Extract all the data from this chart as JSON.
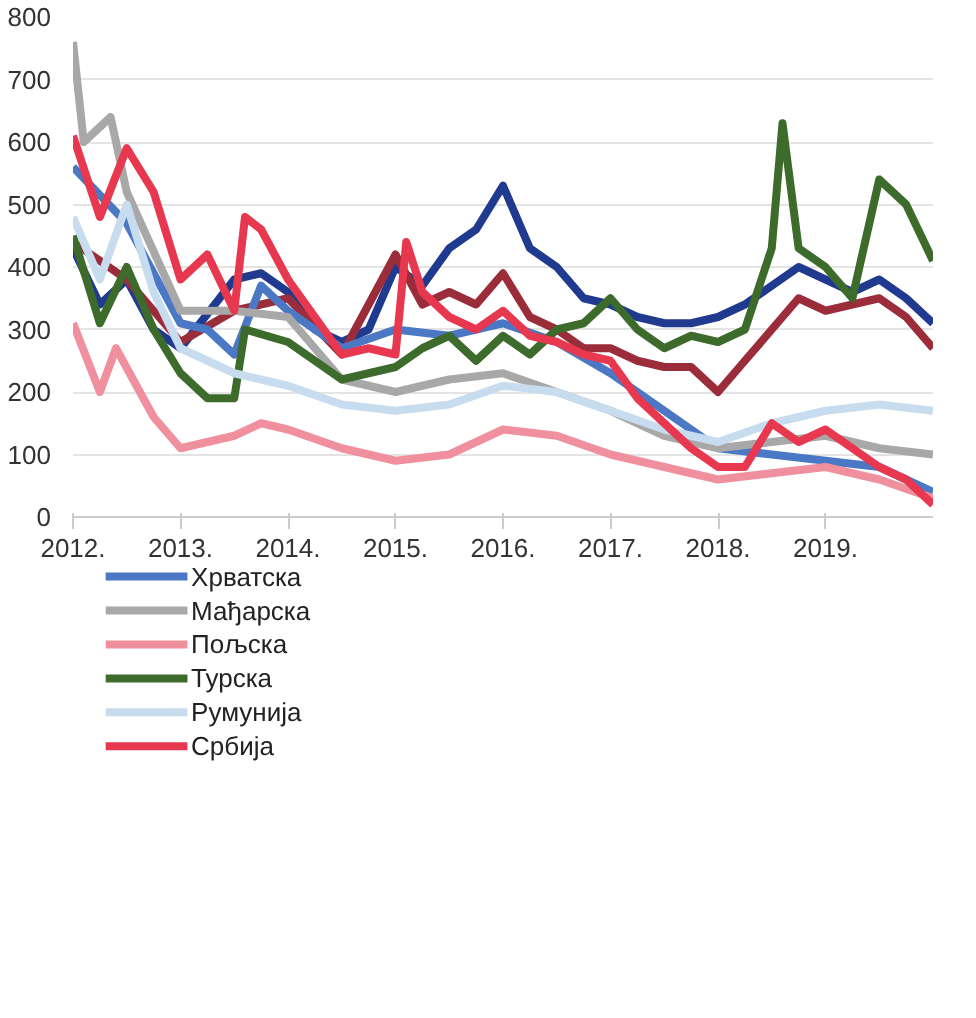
{
  "chart_data": {
    "type": "line",
    "xlim": [
      2012,
      2020
    ],
    "ylim": [
      0,
      800
    ],
    "xticks": [
      {
        "value": 2012,
        "label": "2012."
      },
      {
        "value": 2013,
        "label": "2013."
      },
      {
        "value": 2014,
        "label": "2014."
      },
      {
        "value": 2015,
        "label": "2015."
      },
      {
        "value": 2016,
        "label": "2016."
      },
      {
        "value": 2017,
        "label": "2017."
      },
      {
        "value": 2018,
        "label": "2018."
      },
      {
        "value": 2019,
        "label": "2019."
      }
    ],
    "yticks": [
      0,
      100,
      200,
      300,
      400,
      500,
      600,
      700,
      800
    ],
    "grid": "y",
    "legend": "bottom",
    "line_style": "solid",
    "marker": "none",
    "series": [
      {
        "color": "#1f3a8f",
        "x": [
          2012,
          2012.25,
          2012.5,
          2012.75,
          2013,
          2013.5,
          2013.75,
          2014,
          2014.25,
          2014.5,
          2014.75,
          2015,
          2015.25,
          2015.5,
          2015.75,
          2016,
          2016.25,
          2016.5,
          2016.75,
          2017,
          2017.25,
          2017.5,
          2017.75,
          2018,
          2018.25,
          2018.5,
          2018.75,
          2019,
          2019.25,
          2019.5,
          2019.75,
          2020
        ],
        "values": [
          430,
          340,
          380,
          300,
          270,
          380,
          390,
          360,
          300,
          280,
          300,
          400,
          370,
          430,
          460,
          530,
          430,
          400,
          350,
          340,
          320,
          310,
          310,
          320,
          340,
          370,
          400,
          380,
          360,
          380,
          350,
          310
        ]
      },
      {
        "color": "#9b2c3a",
        "x": [
          2012,
          2012.5,
          2013,
          2013.5,
          2014,
          2014.5,
          2015,
          2015.25,
          2015.5,
          2015.75,
          2016,
          2016.25,
          2016.5,
          2016.75,
          2017,
          2017.25,
          2017.5,
          2017.75,
          2018,
          2018.25,
          2018.5,
          2018.75,
          2019,
          2019.25,
          2019.5,
          2019.75,
          2020
        ],
        "values": [
          440,
          380,
          280,
          330,
          350,
          260,
          420,
          340,
          360,
          340,
          390,
          320,
          300,
          270,
          270,
          250,
          240,
          240,
          200,
          250,
          300,
          350,
          330,
          340,
          350,
          320,
          270
        ]
      },
      {
        "name": "Хрватска",
        "color": "#4a78c4",
        "x": [
          2012,
          2012.5,
          2013,
          2013.25,
          2013.5,
          2013.75,
          2014,
          2014.5,
          2015,
          2015.5,
          2016,
          2016.5,
          2017,
          2017.5,
          2018,
          2018.5,
          2019,
          2019.5,
          2020
        ],
        "values": [
          560,
          470,
          310,
          300,
          260,
          370,
          330,
          270,
          300,
          290,
          310,
          280,
          230,
          170,
          110,
          100,
          90,
          80,
          40
        ]
      },
      {
        "name": "Мађарска",
        "color": "#a8a8a8",
        "x": [
          2012,
          2012.1,
          2012.35,
          2012.5,
          2013,
          2013.5,
          2014,
          2014.5,
          2015,
          2015.5,
          2016,
          2016.5,
          2017,
          2017.5,
          2018,
          2018.5,
          2019,
          2019.5,
          2020
        ],
        "values": [
          760,
          600,
          640,
          520,
          330,
          330,
          320,
          220,
          200,
          220,
          230,
          200,
          170,
          130,
          110,
          120,
          130,
          110,
          100
        ]
      },
      {
        "name": "Пољска",
        "color": "#f0909f",
        "x": [
          2012,
          2012.25,
          2012.4,
          2012.75,
          2013,
          2013.5,
          2013.75,
          2014,
          2014.5,
          2015,
          2015.5,
          2016,
          2016.5,
          2017,
          2017.5,
          2018,
          2018.5,
          2019,
          2019.5,
          2020
        ],
        "values": [
          310,
          200,
          270,
          160,
          110,
          130,
          150,
          140,
          110,
          90,
          100,
          140,
          130,
          100,
          80,
          60,
          70,
          80,
          60,
          30
        ]
      },
      {
        "name": "Турска",
        "color": "#3d6b2c",
        "x": [
          2012,
          2012.25,
          2012.5,
          2012.75,
          2013,
          2013.25,
          2013.5,
          2013.6,
          2014,
          2014.5,
          2015,
          2015.25,
          2015.5,
          2015.75,
          2016,
          2016.25,
          2016.5,
          2016.75,
          2017,
          2017.25,
          2017.5,
          2017.75,
          2018,
          2018.25,
          2018.5,
          2018.6,
          2018.75,
          2019,
          2019.25,
          2019.5,
          2019.75,
          2020
        ],
        "values": [
          450,
          310,
          400,
          300,
          230,
          190,
          190,
          300,
          280,
          220,
          240,
          270,
          290,
          250,
          290,
          260,
          300,
          310,
          350,
          300,
          270,
          290,
          280,
          300,
          430,
          630,
          430,
          400,
          350,
          540,
          500,
          410
        ]
      },
      {
        "name": "Румунија",
        "color": "#c8dcf0",
        "x": [
          2012,
          2012.25,
          2012.5,
          2012.75,
          2013,
          2013.5,
          2014,
          2014.5,
          2015,
          2015.5,
          2016,
          2016.5,
          2017,
          2017.5,
          2018,
          2018.5,
          2019,
          2019.5,
          2020
        ],
        "values": [
          480,
          380,
          500,
          360,
          270,
          230,
          210,
          180,
          170,
          180,
          210,
          200,
          170,
          140,
          120,
          150,
          170,
          180,
          170
        ]
      },
      {
        "name": "Србија",
        "color": "#e8384f",
        "x": [
          2012,
          2012.25,
          2012.5,
          2012.75,
          2013,
          2013.25,
          2013.5,
          2013.6,
          2013.75,
          2014,
          2014.25,
          2014.5,
          2014.75,
          2015,
          2015.1,
          2015.25,
          2015.5,
          2015.75,
          2016,
          2016.25,
          2016.5,
          2016.75,
          2017,
          2017.25,
          2017.5,
          2017.75,
          2018,
          2018.25,
          2018.5,
          2018.75,
          2019,
          2019.25,
          2019.5,
          2019.75,
          2020
        ],
        "values": [
          610,
          480,
          590,
          520,
          380,
          420,
          330,
          480,
          460,
          380,
          320,
          260,
          270,
          260,
          440,
          360,
          320,
          300,
          330,
          290,
          280,
          260,
          250,
          190,
          150,
          110,
          80,
          80,
          150,
          120,
          140,
          110,
          80,
          60,
          20
        ]
      }
    ]
  }
}
